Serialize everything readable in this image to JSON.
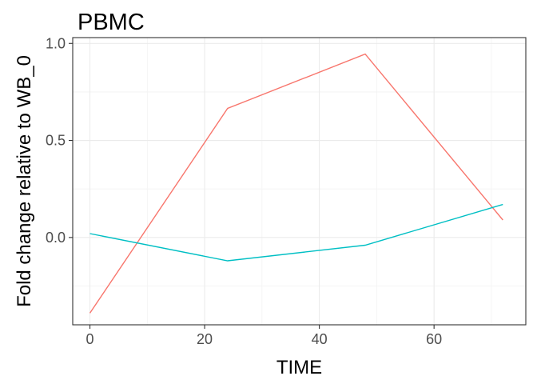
{
  "chart_data": {
    "type": "line",
    "title": "PBMC",
    "xlabel": "TIME",
    "ylabel": "Fold change relative to WB_0",
    "xlim": [
      -3,
      76
    ],
    "ylim": [
      -0.45,
      1.03
    ],
    "x_ticks": [
      0,
      20,
      40,
      60
    ],
    "y_ticks": [
      0.0,
      0.5,
      1.0
    ],
    "x_tick_labels": [
      "0",
      "20",
      "40",
      "60"
    ],
    "y_tick_labels": [
      "0.0",
      "0.5",
      "1.0"
    ],
    "grid": true,
    "legend": "none",
    "series": [
      {
        "color": "#F8766D",
        "x": [
          0,
          24,
          48,
          72
        ],
        "y": [
          -0.39,
          0.665,
          0.945,
          0.09
        ]
      },
      {
        "color": "#00BFC4",
        "x": [
          0,
          24,
          48,
          72
        ],
        "y": [
          0.02,
          -0.12,
          -0.04,
          0.17
        ]
      }
    ]
  }
}
